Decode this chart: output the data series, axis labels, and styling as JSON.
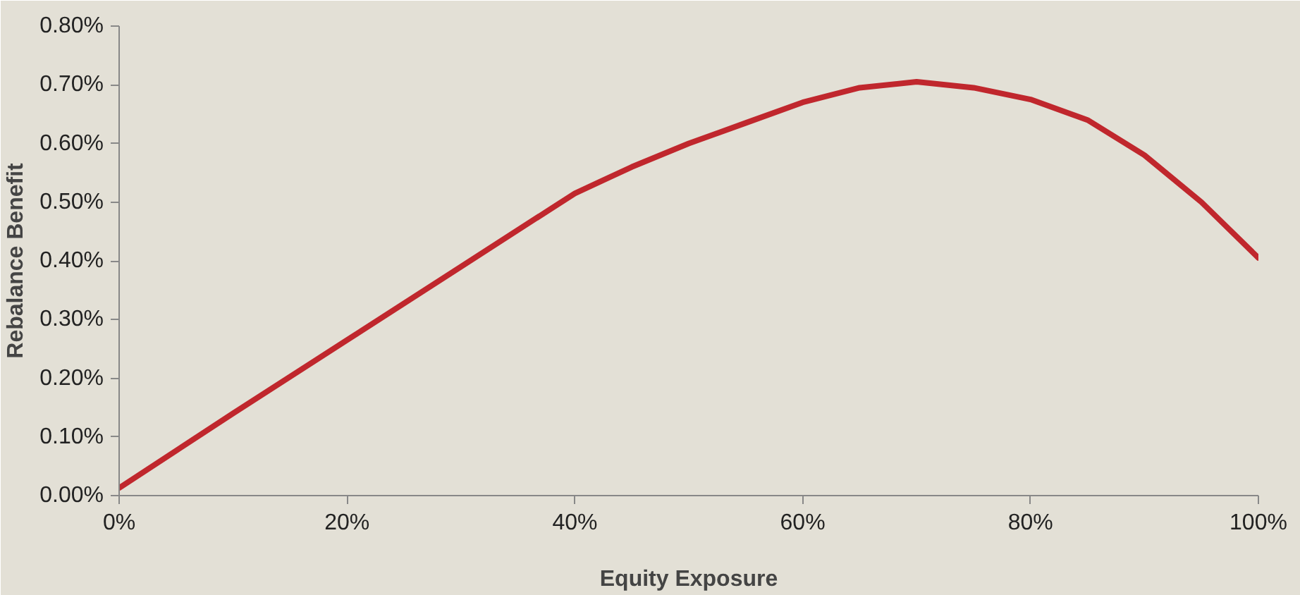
{
  "chart_data": {
    "type": "line",
    "xlabel": "Equity Exposure",
    "ylabel": "Rebalance Benefit",
    "x": [
      0,
      10,
      20,
      30,
      38,
      40,
      45,
      50,
      55,
      60,
      65,
      70,
      75,
      80,
      85,
      90,
      95,
      100
    ],
    "series": [
      {
        "color": "#c0272d",
        "values": [
          0.013,
          0.14,
          0.265,
          0.39,
          0.49,
          0.515,
          0.56,
          0.6,
          0.635,
          0.67,
          0.695,
          0.705,
          0.695,
          0.675,
          0.64,
          0.58,
          0.5,
          0.405
        ]
      }
    ],
    "xlim": [
      0,
      100
    ],
    "ylim": [
      0,
      0.8
    ],
    "xticks": [
      {
        "value": 0,
        "label": "0%"
      },
      {
        "value": 20,
        "label": "20%"
      },
      {
        "value": 40,
        "label": "40%"
      },
      {
        "value": 60,
        "label": "60%"
      },
      {
        "value": 80,
        "label": "80%"
      },
      {
        "value": 100,
        "label": "100%"
      }
    ],
    "yticks": [
      {
        "value": 0,
        "label": "0.00%"
      },
      {
        "value": 0.1,
        "label": "0.10%"
      },
      {
        "value": 0.2,
        "label": "0.20%"
      },
      {
        "value": 0.3,
        "label": "0.30%"
      },
      {
        "value": 0.4,
        "label": "0.40%"
      },
      {
        "value": 0.5,
        "label": "0.50%"
      },
      {
        "value": 0.6,
        "label": "0.60%"
      },
      {
        "value": 0.7,
        "label": "0.70%"
      },
      {
        "value": 0.8,
        "label": "0.80%"
      }
    ],
    "marker": "none",
    "line_style": "solid"
  }
}
